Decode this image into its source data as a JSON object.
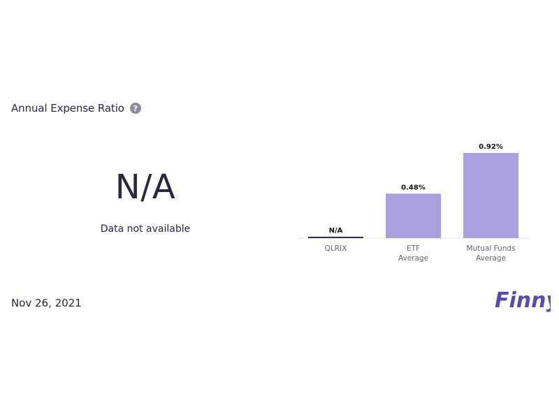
{
  "header": {
    "title": "Annual Expense Ratio",
    "help_icon": "question-mark-icon"
  },
  "summary": {
    "value": "N/A",
    "subtitle": "Data not available"
  },
  "chart_data": {
    "type": "bar",
    "categories": [
      [
        "QLRIX"
      ],
      [
        "ETF",
        "Average"
      ],
      [
        "Mutual Funds",
        "Average"
      ]
    ],
    "values": [
      null,
      0.48,
      0.92
    ],
    "value_labels": [
      "N/A",
      "0.48%",
      "0.92%"
    ],
    "unit": "%",
    "ylim": [
      0,
      0.92
    ],
    "grid": false,
    "colors": {
      "bar": "#a8a1dd",
      "na_bar": "#2e2a63",
      "baseline": "#e4e3ea",
      "label": "#111111",
      "tick": "#666470"
    }
  },
  "footer": {
    "date": "Nov 26, 2021",
    "brand": "Finny",
    "brand_color": "#5b48b8"
  }
}
